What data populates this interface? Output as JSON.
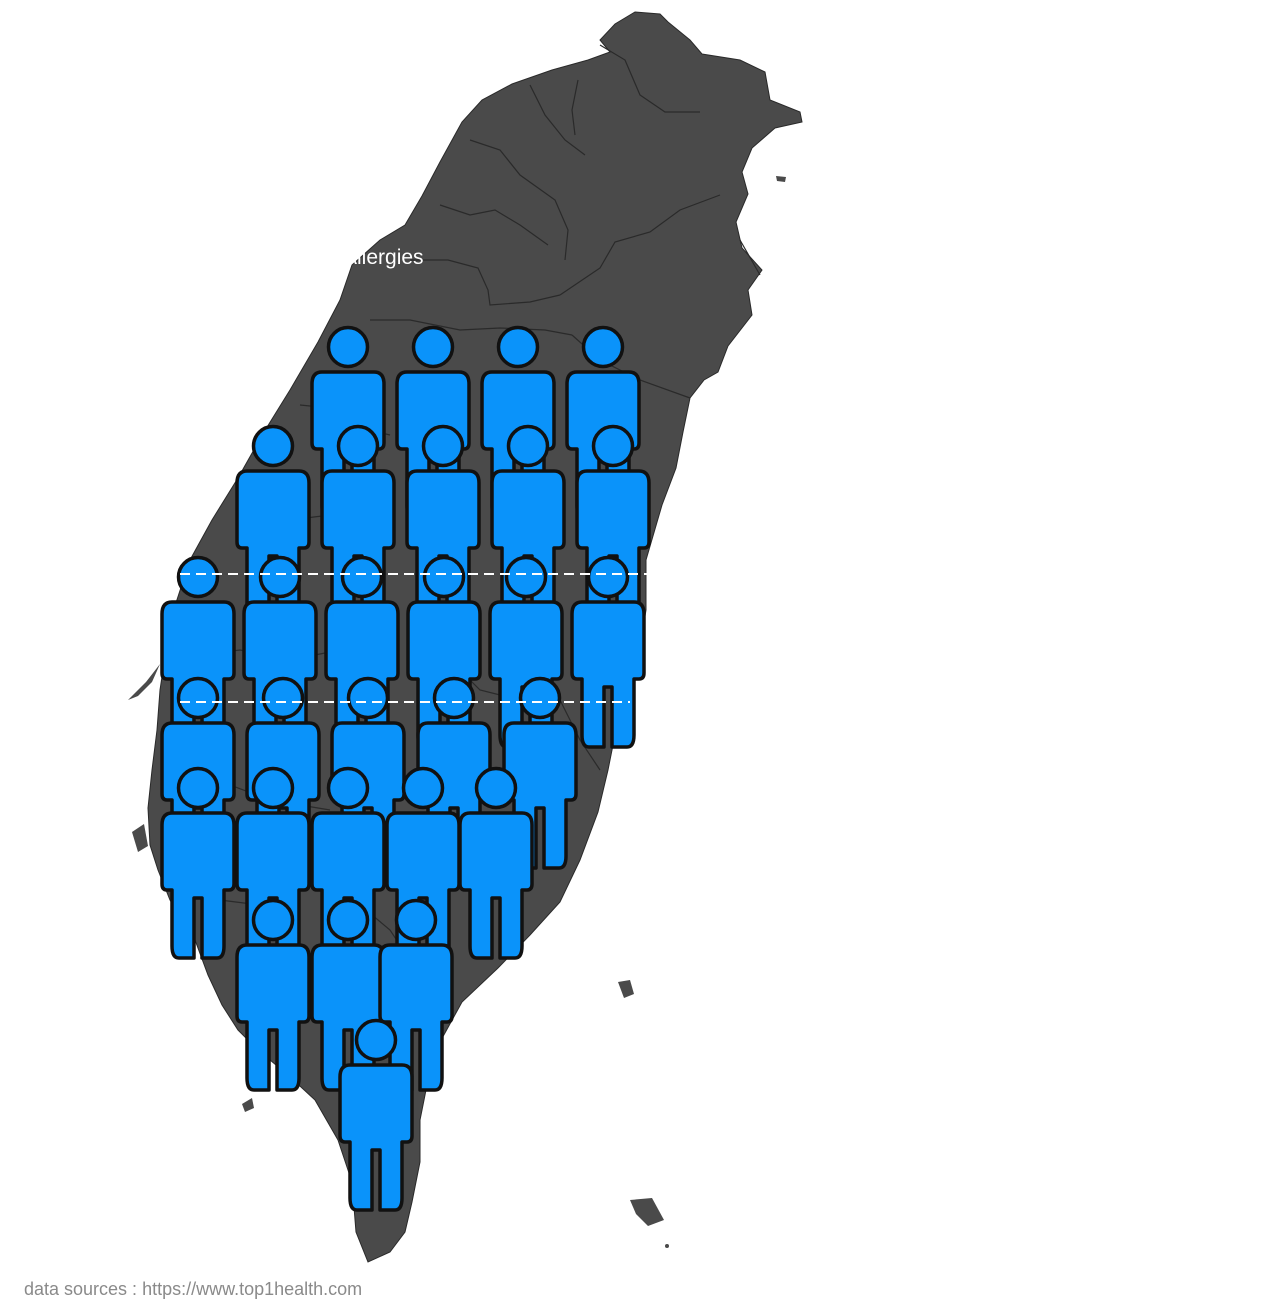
{
  "map": {
    "title": "Allergies",
    "source": "data sources : https://www.top1health.com"
  },
  "colors": {
    "land": "#4a4a4a",
    "border": "#2a2a2a",
    "person_fill": "#0a93fa",
    "person_stroke": "#111111",
    "guide_line": "#ffffff"
  },
  "icons": {
    "person": "person-icon"
  }
}
